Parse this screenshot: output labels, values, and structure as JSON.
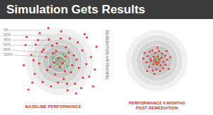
{
  "title": "Simulation Gets Results",
  "annotation": "REMEDIATION SIM TRAINING",
  "chart_data": [
    {
      "type": "scatter",
      "title": "BASELINE PERFORMANCE",
      "xlim": [
        -7,
        7
      ],
      "ylim": [
        -7,
        7
      ],
      "grid": false,
      "rticks": [
        {
          "value": 6,
          "label": "0%"
        },
        {
          "value": 5,
          "label": "20%"
        },
        {
          "value": 4,
          "label": "40%"
        },
        {
          "value": 3,
          "label": "60%"
        },
        {
          "value": 2,
          "label": "80%"
        },
        {
          "value": 1,
          "label": "100%"
        }
      ],
      "series": [
        {
          "color": "#e8403a",
          "x": [
            -5.8,
            -4.2,
            -3.5,
            -2.8,
            -1.9,
            -1.2,
            -0.5,
            0.3,
            1.1,
            1.8,
            2.5,
            3.2,
            4.0,
            4.8,
            5.5,
            6.2,
            -6.3,
            -5.0,
            -4.4,
            -3.6,
            -3.0,
            -2.2,
            -1.5,
            -0.8,
            0.0,
            0.7,
            1.4,
            2.0,
            2.7,
            3.4,
            4.1,
            4.7,
            5.2,
            -0.2,
            0.5,
            -1.0,
            1.0,
            -2.4,
            2.2,
            -0.6,
            0.9,
            -1.7,
            1.6,
            -3.1,
            3.0,
            -0.3,
            0.2,
            -4.8,
            4.4,
            -6.0,
            6.5,
            -2.0,
            2.9,
            -5.5,
            5.9,
            -1.3,
            1.3,
            -3.8,
            3.8,
            -4.6
          ],
          "values": [
            4.5,
            3.1,
            5.2,
            2.2,
            4.0,
            1.5,
            3.3,
            5.5,
            2.6,
            4.2,
            1.1,
            3.5,
            2.0,
            4.4,
            0.8,
            -1.5,
            -0.7,
            1.2,
            -2.3,
            -0.4,
            -3.8,
            -1.6,
            -4.6,
            -2.4,
            -1.0,
            -3.2,
            -5.3,
            -2.0,
            -4.1,
            -1.2,
            -3.0,
            -0.5,
            -2.8,
            0.6,
            -0.3,
            -0.2,
            0.9,
            0.8,
            -0.7,
            1.9,
            -1.8,
            -1.0,
            1.6,
            1.8,
            0.3,
            -3.9,
            4.2,
            -3.9,
            5.0,
            3.0,
            2.7,
            6.1,
            -5.9,
            -5.2,
            -4.6,
            2.9,
            -4.1,
            3.9,
            -4.9,
            0.2
          ]
        },
        {
          "color": "#6cc04a",
          "x": [
            -0.4,
            0.3,
            0.5,
            -0.6,
            0.9,
            -1.1,
            0.1,
            1.4,
            -0.9,
            0.6
          ],
          "values": [
            0.3,
            0.6,
            -0.4,
            -0.5,
            0.1,
            0.7,
            -1.2,
            -0.9,
            1.6,
            1.3
          ]
        }
      ]
    },
    {
      "type": "scatter",
      "title": "PERFORMANCE 6 MONTHS POST REMEDIATION",
      "xlim": [
        -7,
        7
      ],
      "ylim": [
        -7,
        7
      ],
      "grid": false,
      "rticks": [
        6,
        5,
        4,
        3,
        2,
        1
      ],
      "tick_labels": false,
      "series": [
        {
          "color": "#e8403a",
          "x": [
            -1.8,
            -1.4,
            -0.9,
            -0.3,
            0.4,
            1.0,
            1.6,
            2.0,
            1.7,
            1.2,
            0.6,
            -0.1,
            -0.8,
            -1.5,
            -2.0,
            -1.2,
            -0.6,
            0.2,
            0.9,
            1.2,
            0.7,
            0.0,
            -0.7,
            -1.1,
            -0.4,
            0.4,
            0.3,
            -0.2,
            -2.4,
            2.3,
            1.9,
            -1.9,
            0.1,
            -0.5,
            2.6,
            -2.6
          ],
          "values": [
            0.9,
            1.7,
            2.0,
            1.5,
            1.9,
            1.4,
            1.0,
            0.2,
            -0.8,
            -1.5,
            -2.0,
            -1.7,
            -1.9,
            -1.2,
            -0.3,
            0.3,
            0.8,
            0.9,
            0.6,
            -0.2,
            -0.9,
            -0.8,
            -0.7,
            -0.1,
            0.1,
            0.2,
            -0.4,
            -0.3,
            1.5,
            -1.6,
            1.9,
            -2.0,
            2.5,
            -2.6,
            0.7,
            0.4
          ]
        },
        {
          "color": "#6cc04a",
          "x": [
            -0.3,
            0.2,
            0.6,
            -0.6,
            0.1,
            -0.1
          ],
          "values": [
            0.4,
            -0.1,
            0.5,
            -0.3,
            0.6,
            -0.6
          ]
        }
      ]
    }
  ]
}
